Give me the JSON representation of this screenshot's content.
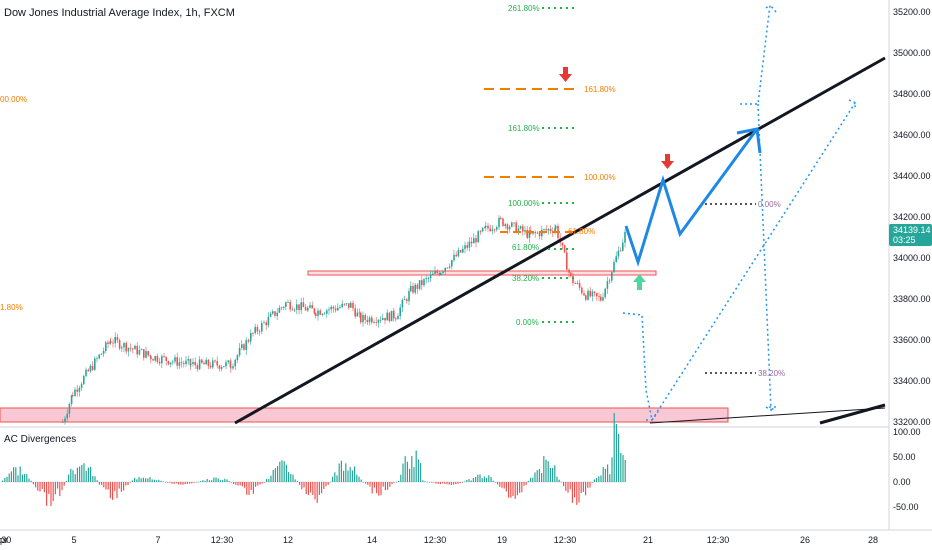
{
  "chart_title": "Dow Jones Industrial Average Index, 1h, FXCM",
  "indicator_label": "AC Divergences",
  "price_axis": {
    "ticks": [
      "35200.00",
      "35000.00",
      "34800.00",
      "34600.00",
      "34400.00",
      "34200.00",
      "34000.00",
      "33800.00",
      "33600.00",
      "33400.00",
      "33200.00"
    ],
    "current_price": "34139.14",
    "countdown": "03:25"
  },
  "indicator_axis": {
    "ticks": [
      "100.00",
      "50.00",
      "0.00",
      "-50.00"
    ]
  },
  "time_axis": {
    "ticks": [
      "pr",
      "5",
      "7",
      "12:30",
      "12",
      "14",
      "12:30",
      "19",
      "12:30",
      "21",
      "12:30",
      "26",
      "28",
      "12:30"
    ]
  },
  "fib_levels": {
    "left_100": "00.00%",
    "left_618": "1.80%",
    "green_2618": "261.80%",
    "green_1618": "161.80%",
    "green_100": "100.00%",
    "green_618": "61.80%",
    "green_382": "38.20%",
    "green_0": "0.00%",
    "orange_1618": "161.80%",
    "orange_100": "100.00%",
    "orange_618": "61.80%",
    "purple_0": "0.00%",
    "purple_382": "38.20%"
  },
  "colors": {
    "up": "#26a69a",
    "down": "#ef5350",
    "trendline": "#131722",
    "projection": "#1e88e5",
    "projection_dotted": "#2196f3",
    "fib_green": "#22b14c",
    "fib_orange": "#f57c00",
    "arrow_red": "#e53935",
    "arrow_green": "#4cd6a0",
    "price_tag": "#26a69a",
    "support_zone": "#f8c8d4"
  },
  "chart_data": {
    "type": "candlestick",
    "title": "Dow Jones Industrial Average Index, 1h, FXCM",
    "y_range": [
      33200,
      35200
    ],
    "x_categories": [
      "5",
      "7",
      "12:30",
      "12",
      "14",
      "12:30",
      "19",
      "12:30",
      "21",
      "12:30",
      "26",
      "28",
      "12:30"
    ],
    "close_path": [
      [
        "start",
        33200
      ],
      [
        "5",
        33340
      ],
      [
        "5b",
        33600
      ],
      [
        "7",
        33520
      ],
      [
        "7b",
        33480
      ],
      [
        "12:30",
        33480
      ],
      [
        "12:30b",
        33620
      ],
      [
        "12",
        33780
      ],
      [
        "12b",
        33740
      ],
      [
        "13",
        33770
      ],
      [
        "14",
        33700
      ],
      [
        "14b",
        33720
      ],
      [
        "12:30",
        33840
      ],
      [
        "12:30b",
        33940
      ],
      [
        "19",
        34140
      ],
      [
        "19b",
        34180
      ],
      [
        "20",
        34110
      ],
      [
        "20b",
        34150
      ],
      [
        "21",
        33900
      ],
      [
        "21b",
        33820
      ],
      [
        "21c",
        33800
      ],
      [
        "12:30",
        34139.14
      ]
    ],
    "projection_path": [
      34139.14,
      33970,
      34380,
      34110,
      34620
    ],
    "indicator": {
      "name": "AC Divergences",
      "range": [
        -60,
        110
      ]
    }
  }
}
